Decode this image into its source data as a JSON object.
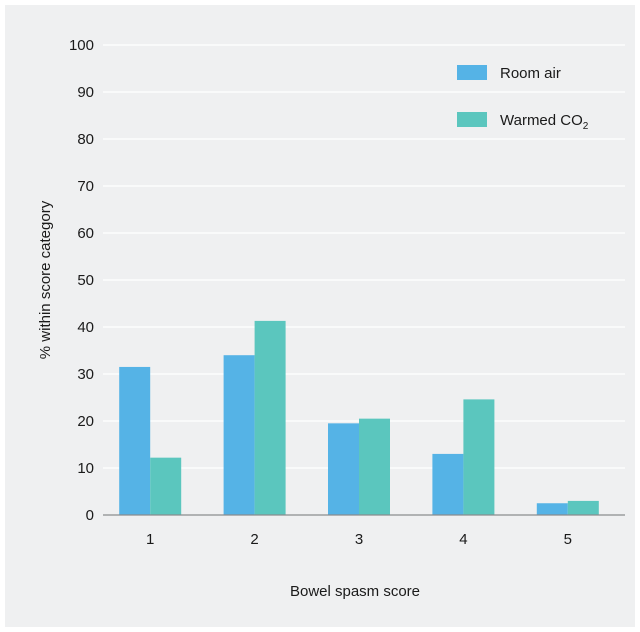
{
  "chart_data": {
    "type": "bar",
    "title": "",
    "xlabel": "Bowel spasm score",
    "ylabel": "% within score category",
    "categories": [
      "1",
      "2",
      "3",
      "4",
      "5"
    ],
    "ylim": [
      0,
      100
    ],
    "yticks": [
      "0",
      "10",
      "20",
      "30",
      "40",
      "50",
      "60",
      "70",
      "80",
      "90",
      "100"
    ],
    "grid": true,
    "legend_position": "top-right",
    "series": [
      {
        "name": "Room air",
        "color": "#55b3e6",
        "values": [
          31.5,
          34,
          19.5,
          13,
          2.5
        ]
      },
      {
        "name": "Warmed CO",
        "name_subscript": "2",
        "color": "#5bc6be",
        "values": [
          12.2,
          41.3,
          20.5,
          24.6,
          3
        ]
      }
    ]
  }
}
